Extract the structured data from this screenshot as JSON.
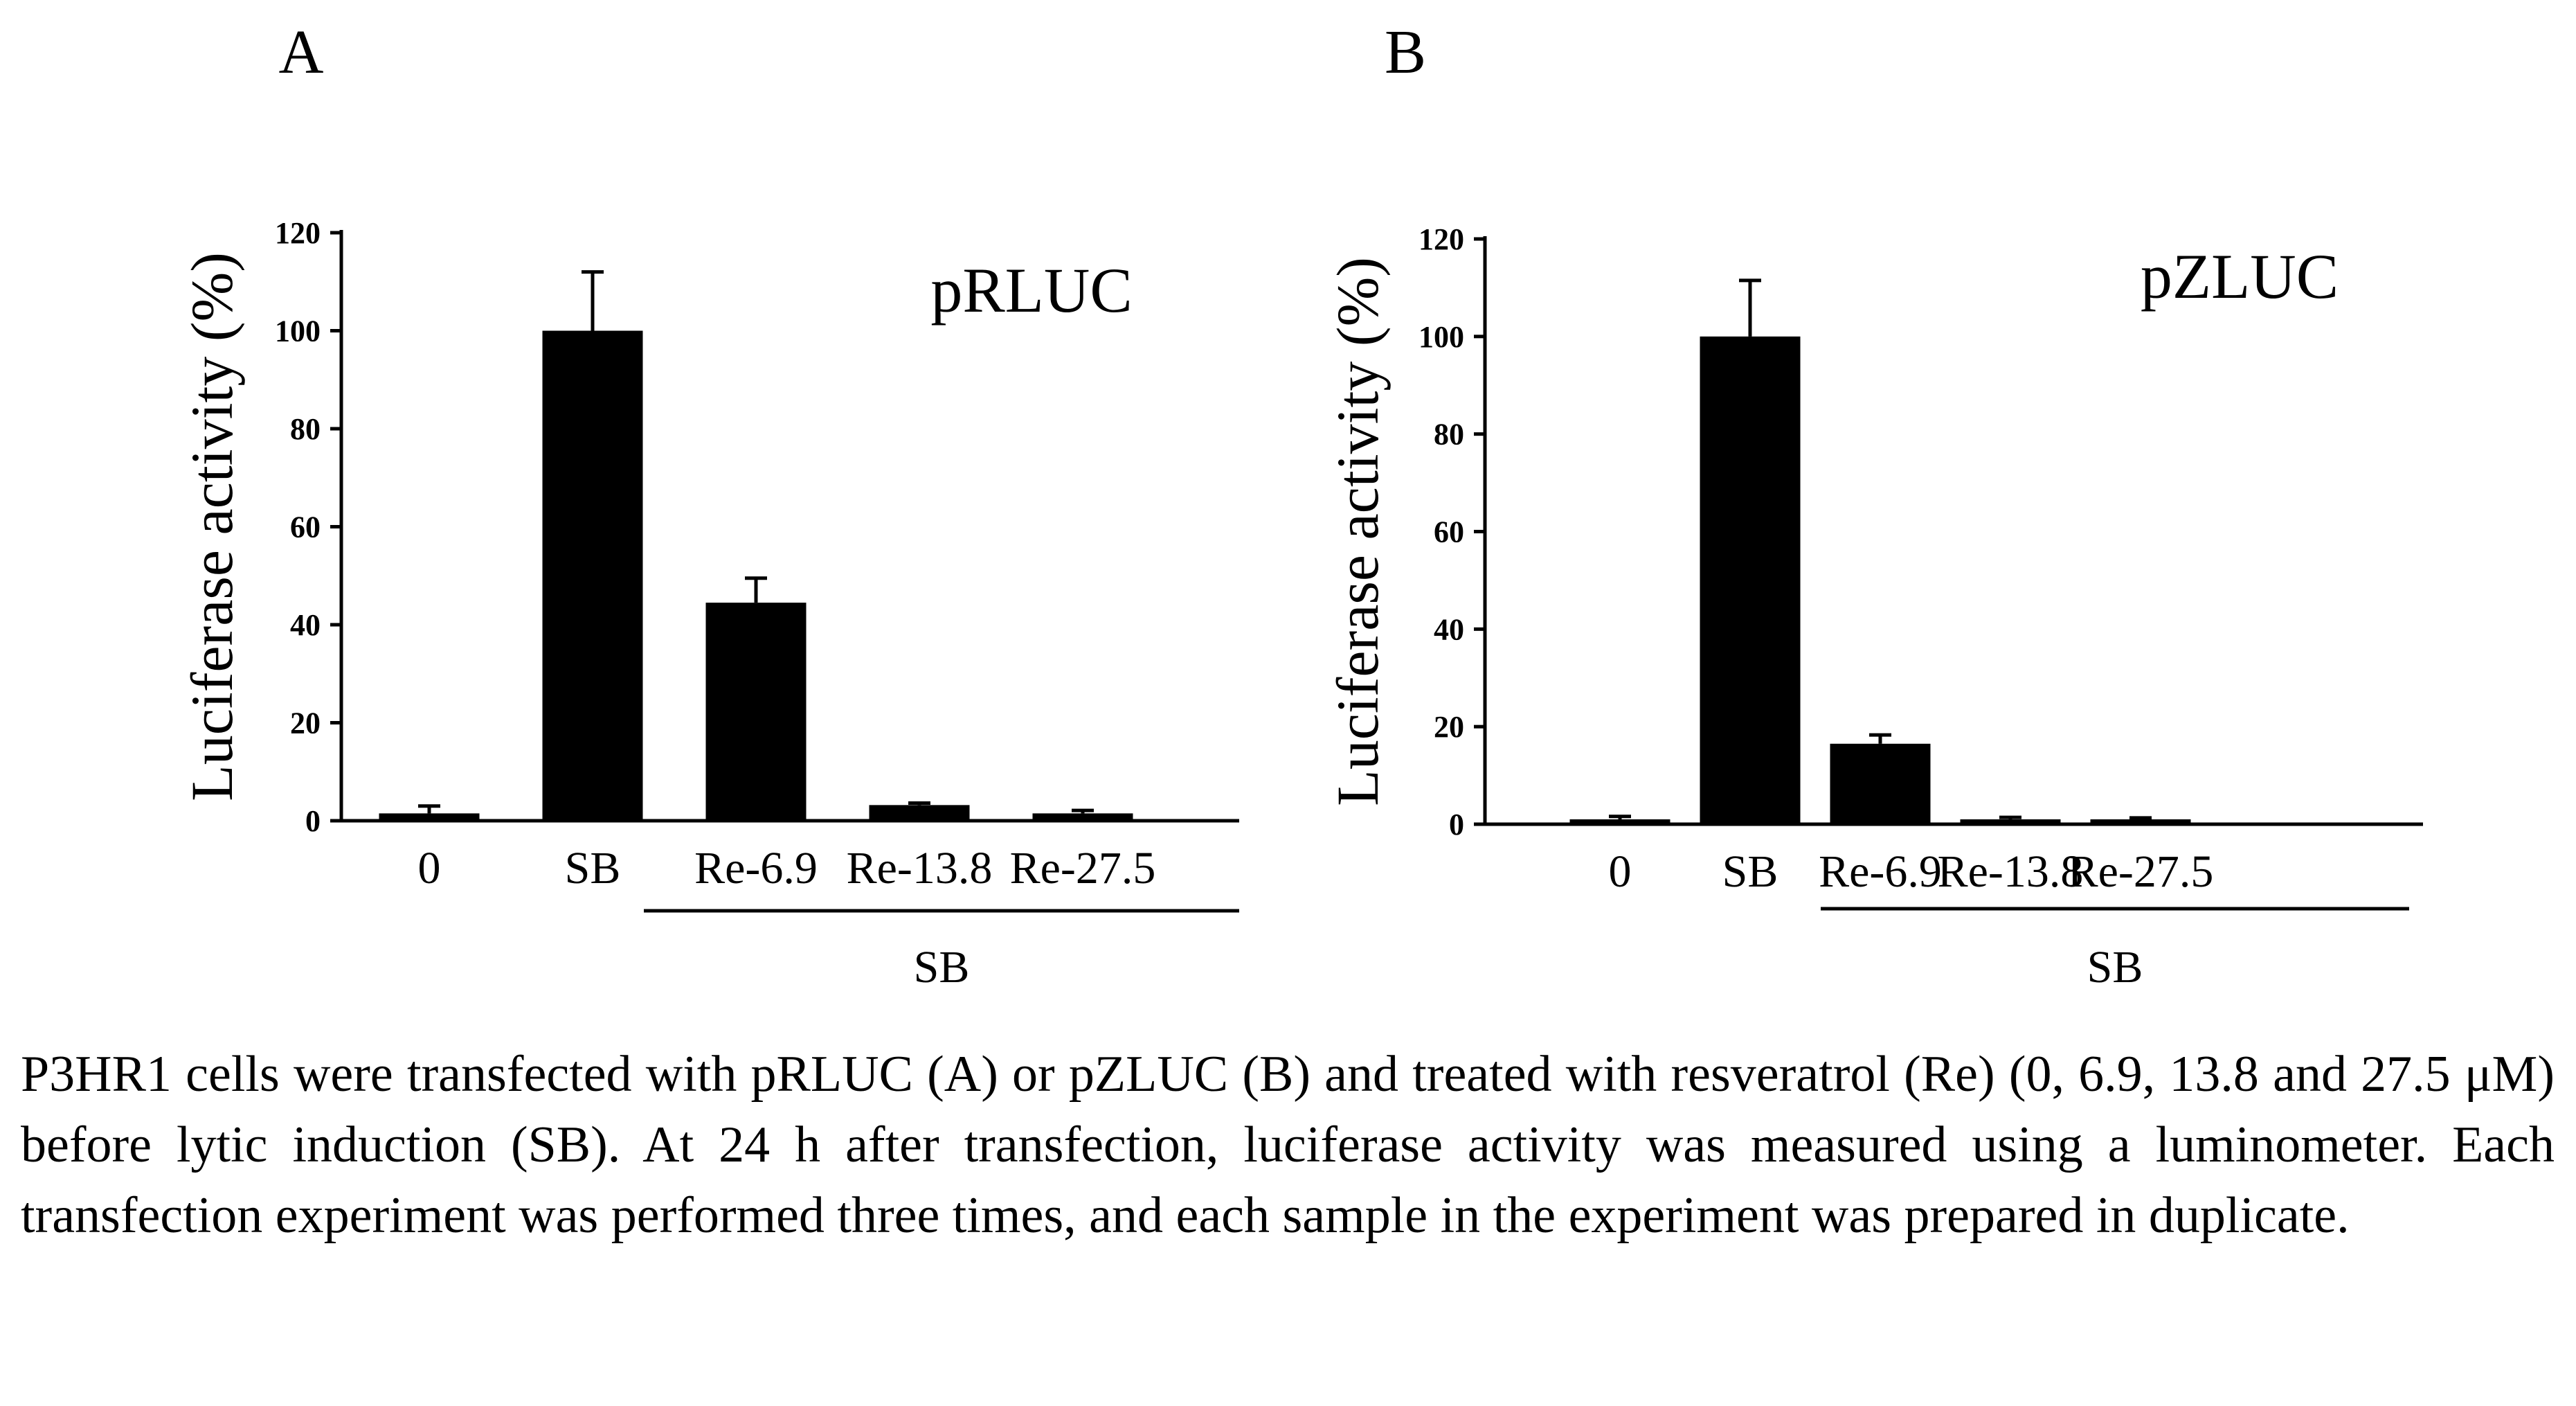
{
  "chart_data": [
    {
      "type": "bar",
      "panel_label": "A",
      "annotation": "pRLUC",
      "ylabel": "Luciferase activity (%)",
      "ylim": [
        0,
        120
      ],
      "yticks": [
        "0",
        "20",
        "40",
        "60",
        "80",
        "100",
        "120"
      ],
      "categories": [
        "0",
        "SB",
        "Re-6.9",
        "Re-13.8",
        "Re-27.5"
      ],
      "values": [
        1.5,
        100,
        44.5,
        3.2,
        1.5
      ],
      "errors": [
        1.5,
        12,
        5,
        0.4,
        0.6
      ],
      "group_label": "SB",
      "bar_color": "#000000"
    },
    {
      "type": "bar",
      "panel_label": "B",
      "annotation": "pZLUC",
      "ylabel": "Luciferase activity (%)",
      "ylim": [
        0,
        120
      ],
      "yticks": [
        "0",
        "20",
        "40",
        "60",
        "80",
        "100",
        "120"
      ],
      "categories": [
        "0",
        "SB",
        "Re-6.9",
        "Re-13.8",
        "Re-27.5"
      ],
      "values": [
        1,
        100,
        16.5,
        1,
        1
      ],
      "errors": [
        0.6,
        11.5,
        1.8,
        0.4,
        0.3
      ],
      "group_label": "SB",
      "bar_color": "#000000"
    }
  ],
  "caption": "P3HR1 cells were transfected with pRLUC (A) or pZLUC (B) and treated with resveratrol (Re) (0, 6.9, 13.8 and 27.5 μM) before lytic induction (SB). At 24 h after transfection, luciferase activity was measured using a luminometer. Each transfection experiment was performed three times, and each sample in the experiment was prepared in duplicate."
}
